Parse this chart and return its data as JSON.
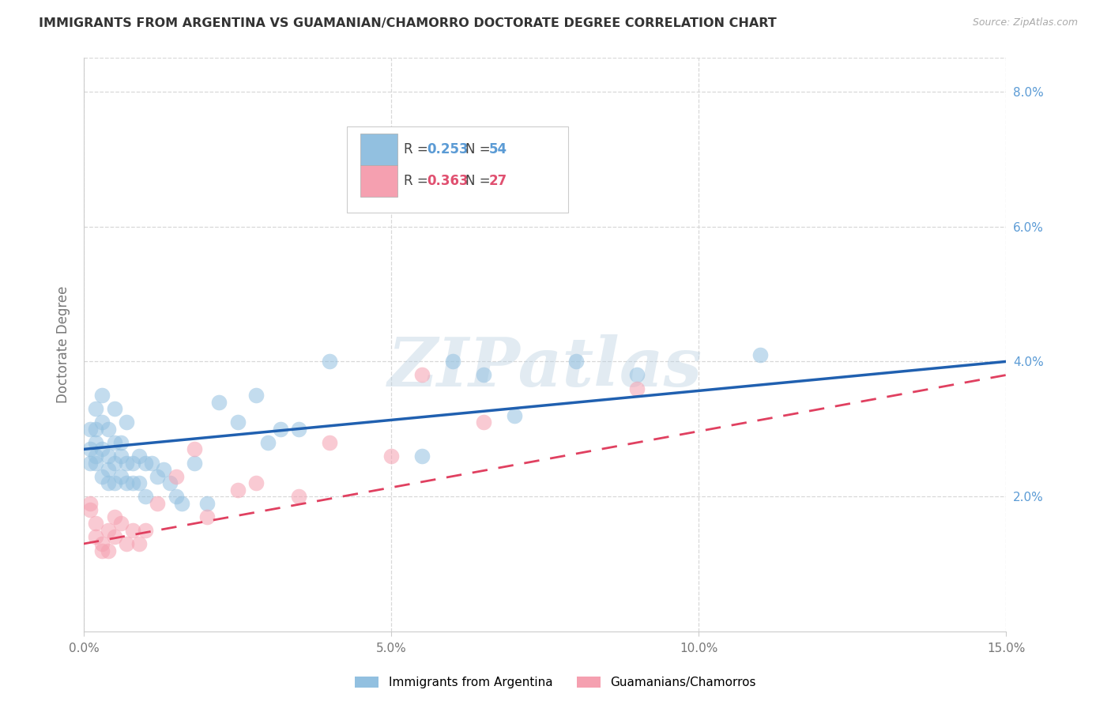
{
  "title": "IMMIGRANTS FROM ARGENTINA VS GUAMANIAN/CHAMORRO DOCTORATE DEGREE CORRELATION CHART",
  "source": "Source: ZipAtlas.com",
  "ylabel": "Doctorate Degree",
  "xlim": [
    0.0,
    0.15
  ],
  "ylim": [
    0.0,
    0.085
  ],
  "xticks": [
    0.0,
    0.05,
    0.1,
    0.15
  ],
  "xtick_labels": [
    "0.0%",
    "5.0%",
    "10.0%",
    "15.0%"
  ],
  "yticks_right": [
    0.0,
    0.02,
    0.04,
    0.06,
    0.08
  ],
  "ytick_labels_right": [
    "",
    "2.0%",
    "4.0%",
    "6.0%",
    "8.0%"
  ],
  "legend_blue_r": "R = 0.253",
  "legend_blue_n": "N = 54",
  "legend_pink_r": "R = 0.363",
  "legend_pink_n": "N = 27",
  "blue_color": "#92c0e0",
  "pink_color": "#f5a0b0",
  "blue_line_color": "#2060b0",
  "pink_line_color": "#e04060",
  "watermark_text": "ZIPatlas",
  "series1_label": "Immigrants from Argentina",
  "series2_label": "Guamanians/Chamorros",
  "blue_x": [
    0.001,
    0.001,
    0.001,
    0.002,
    0.002,
    0.002,
    0.002,
    0.002,
    0.003,
    0.003,
    0.003,
    0.003,
    0.004,
    0.004,
    0.004,
    0.004,
    0.005,
    0.005,
    0.005,
    0.005,
    0.006,
    0.006,
    0.006,
    0.007,
    0.007,
    0.007,
    0.008,
    0.008,
    0.009,
    0.009,
    0.01,
    0.01,
    0.011,
    0.012,
    0.013,
    0.014,
    0.015,
    0.016,
    0.018,
    0.02,
    0.022,
    0.025,
    0.028,
    0.03,
    0.032,
    0.035,
    0.04,
    0.055,
    0.06,
    0.065,
    0.07,
    0.08,
    0.09,
    0.11
  ],
  "blue_y": [
    0.027,
    0.03,
    0.025,
    0.028,
    0.026,
    0.03,
    0.033,
    0.025,
    0.031,
    0.035,
    0.027,
    0.023,
    0.03,
    0.026,
    0.022,
    0.024,
    0.028,
    0.033,
    0.025,
    0.022,
    0.028,
    0.026,
    0.023,
    0.031,
    0.025,
    0.022,
    0.025,
    0.022,
    0.026,
    0.022,
    0.025,
    0.02,
    0.025,
    0.023,
    0.024,
    0.022,
    0.02,
    0.019,
    0.025,
    0.019,
    0.034,
    0.031,
    0.035,
    0.028,
    0.03,
    0.03,
    0.04,
    0.026,
    0.04,
    0.038,
    0.032,
    0.04,
    0.038,
    0.041
  ],
  "pink_x": [
    0.001,
    0.001,
    0.002,
    0.002,
    0.003,
    0.003,
    0.004,
    0.004,
    0.005,
    0.005,
    0.006,
    0.007,
    0.008,
    0.009,
    0.01,
    0.012,
    0.015,
    0.018,
    0.02,
    0.025,
    0.028,
    0.035,
    0.04,
    0.05,
    0.055,
    0.065,
    0.09
  ],
  "pink_y": [
    0.019,
    0.018,
    0.016,
    0.014,
    0.013,
    0.012,
    0.012,
    0.015,
    0.014,
    0.017,
    0.016,
    0.013,
    0.015,
    0.013,
    0.015,
    0.019,
    0.023,
    0.027,
    0.017,
    0.021,
    0.022,
    0.02,
    0.028,
    0.026,
    0.038,
    0.031,
    0.036
  ],
  "blue_trend_x0": 0.0,
  "blue_trend_x1": 0.15,
  "blue_trend_y0": 0.027,
  "blue_trend_y1": 0.04,
  "pink_trend_x0": 0.0,
  "pink_trend_x1": 0.15,
  "pink_trend_y0": 0.013,
  "pink_trend_y1": 0.038,
  "grid_color": "#d8d8d8",
  "bg_color": "#ffffff",
  "title_fontsize": 11.5,
  "tick_fontsize": 11,
  "label_fontsize": 12
}
